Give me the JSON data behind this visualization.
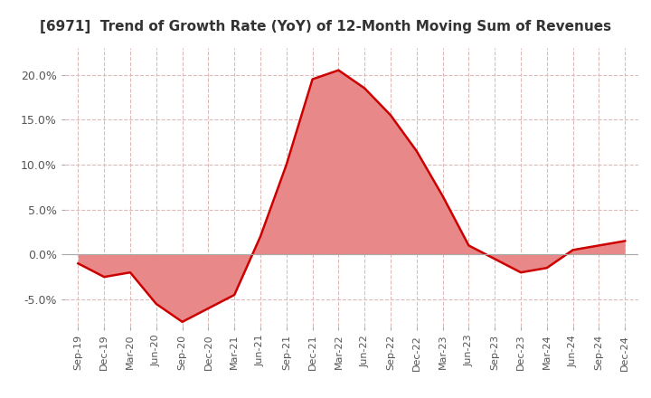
{
  "title": "[6971]  Trend of Growth Rate (YoY) of 12-Month Moving Sum of Revenues",
  "title_fontsize": 11,
  "title_color": "#333333",
  "ylim": [
    -0.08,
    0.23
  ],
  "yticks": [
    -0.05,
    0.0,
    0.05,
    0.1,
    0.15,
    0.2
  ],
  "ytick_labels": [
    "-5.0%",
    "0.0%",
    "5.0%",
    "10.0%",
    "15.0%",
    "20.0%"
  ],
  "background_color": "#ffffff",
  "plot_bg_color": "#ffffff",
  "grid_color": "#ddbbbb",
  "line_color": "#cc0000",
  "fill_color": "#e88888",
  "x_labels": [
    "Sep-19",
    "Dec-19",
    "Mar-20",
    "Jun-20",
    "Sep-20",
    "Dec-20",
    "Mar-21",
    "Jun-21",
    "Sep-21",
    "Dec-21",
    "Mar-22",
    "Jun-22",
    "Sep-22",
    "Dec-22",
    "Mar-23",
    "Jun-23",
    "Sep-23",
    "Dec-23",
    "Mar-24",
    "Jun-24",
    "Sep-24",
    "Dec-24"
  ],
  "y_values": [
    -0.01,
    -0.025,
    -0.02,
    -0.055,
    -0.075,
    -0.06,
    -0.045,
    0.02,
    0.1,
    0.195,
    0.205,
    0.185,
    0.155,
    0.115,
    0.065,
    0.01,
    -0.005,
    -0.02,
    -0.015,
    0.005,
    0.01,
    0.015
  ]
}
